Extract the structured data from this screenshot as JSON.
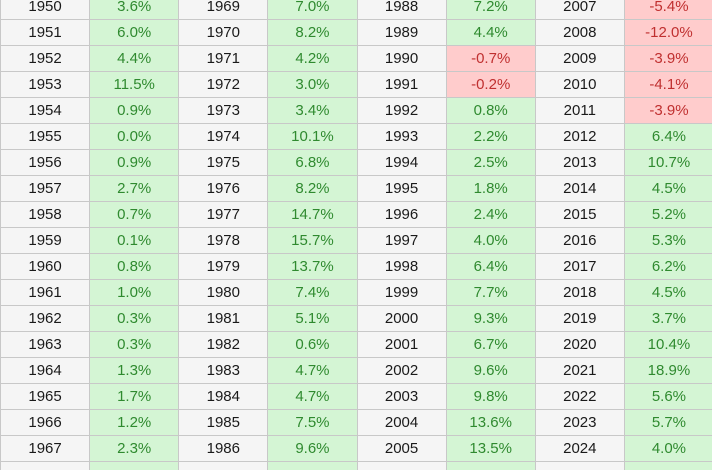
{
  "table": {
    "rows": [
      [
        {
          "year": "1950",
          "value": "3.6%",
          "sign": "pos"
        },
        {
          "year": "1969",
          "value": "7.0%",
          "sign": "pos"
        },
        {
          "year": "1988",
          "value": "7.2%",
          "sign": "pos"
        },
        {
          "year": "2007",
          "value": "-5.4%",
          "sign": "neg"
        }
      ],
      [
        {
          "year": "1951",
          "value": "6.0%",
          "sign": "pos"
        },
        {
          "year": "1970",
          "value": "8.2%",
          "sign": "pos"
        },
        {
          "year": "1989",
          "value": "4.4%",
          "sign": "pos"
        },
        {
          "year": "2008",
          "value": "-12.0%",
          "sign": "neg"
        }
      ],
      [
        {
          "year": "1952",
          "value": "4.4%",
          "sign": "pos"
        },
        {
          "year": "1971",
          "value": "4.2%",
          "sign": "pos"
        },
        {
          "year": "1990",
          "value": "-0.7%",
          "sign": "neg"
        },
        {
          "year": "2009",
          "value": "-3.9%",
          "sign": "neg"
        }
      ],
      [
        {
          "year": "1953",
          "value": "11.5%",
          "sign": "pos"
        },
        {
          "year": "1972",
          "value": "3.0%",
          "sign": "pos"
        },
        {
          "year": "1991",
          "value": "-0.2%",
          "sign": "neg"
        },
        {
          "year": "2010",
          "value": "-4.1%",
          "sign": "neg"
        }
      ],
      [
        {
          "year": "1954",
          "value": "0.9%",
          "sign": "pos"
        },
        {
          "year": "1973",
          "value": "3.4%",
          "sign": "pos"
        },
        {
          "year": "1992",
          "value": "0.8%",
          "sign": "pos"
        },
        {
          "year": "2011",
          "value": "-3.9%",
          "sign": "neg"
        }
      ],
      [
        {
          "year": "1955",
          "value": "0.0%",
          "sign": "pos"
        },
        {
          "year": "1974",
          "value": "10.1%",
          "sign": "pos"
        },
        {
          "year": "1993",
          "value": "2.2%",
          "sign": "pos"
        },
        {
          "year": "2012",
          "value": "6.4%",
          "sign": "pos"
        }
      ],
      [
        {
          "year": "1956",
          "value": "0.9%",
          "sign": "pos"
        },
        {
          "year": "1975",
          "value": "6.8%",
          "sign": "pos"
        },
        {
          "year": "1994",
          "value": "2.5%",
          "sign": "pos"
        },
        {
          "year": "2013",
          "value": "10.7%",
          "sign": "pos"
        }
      ],
      [
        {
          "year": "1957",
          "value": "2.7%",
          "sign": "pos"
        },
        {
          "year": "1976",
          "value": "8.2%",
          "sign": "pos"
        },
        {
          "year": "1995",
          "value": "1.8%",
          "sign": "pos"
        },
        {
          "year": "2014",
          "value": "4.5%",
          "sign": "pos"
        }
      ],
      [
        {
          "year": "1958",
          "value": "0.7%",
          "sign": "pos"
        },
        {
          "year": "1977",
          "value": "14.7%",
          "sign": "pos"
        },
        {
          "year": "1996",
          "value": "2.4%",
          "sign": "pos"
        },
        {
          "year": "2015",
          "value": "5.2%",
          "sign": "pos"
        }
      ],
      [
        {
          "year": "1959",
          "value": "0.1%",
          "sign": "pos"
        },
        {
          "year": "1978",
          "value": "15.7%",
          "sign": "pos"
        },
        {
          "year": "1997",
          "value": "4.0%",
          "sign": "pos"
        },
        {
          "year": "2016",
          "value": "5.3%",
          "sign": "pos"
        }
      ],
      [
        {
          "year": "1960",
          "value": "0.8%",
          "sign": "pos"
        },
        {
          "year": "1979",
          "value": "13.7%",
          "sign": "pos"
        },
        {
          "year": "1998",
          "value": "6.4%",
          "sign": "pos"
        },
        {
          "year": "2017",
          "value": "6.2%",
          "sign": "pos"
        }
      ],
      [
        {
          "year": "1961",
          "value": "1.0%",
          "sign": "pos"
        },
        {
          "year": "1980",
          "value": "7.4%",
          "sign": "pos"
        },
        {
          "year": "1999",
          "value": "7.7%",
          "sign": "pos"
        },
        {
          "year": "2018",
          "value": "4.5%",
          "sign": "pos"
        }
      ],
      [
        {
          "year": "1962",
          "value": "0.3%",
          "sign": "pos"
        },
        {
          "year": "1981",
          "value": "5.1%",
          "sign": "pos"
        },
        {
          "year": "2000",
          "value": "9.3%",
          "sign": "pos"
        },
        {
          "year": "2019",
          "value": "3.7%",
          "sign": "pos"
        }
      ],
      [
        {
          "year": "1963",
          "value": "0.3%",
          "sign": "pos"
        },
        {
          "year": "1982",
          "value": "0.6%",
          "sign": "pos"
        },
        {
          "year": "2001",
          "value": "6.7%",
          "sign": "pos"
        },
        {
          "year": "2020",
          "value": "10.4%",
          "sign": "pos"
        }
      ],
      [
        {
          "year": "1964",
          "value": "1.3%",
          "sign": "pos"
        },
        {
          "year": "1983",
          "value": "4.7%",
          "sign": "pos"
        },
        {
          "year": "2002",
          "value": "9.6%",
          "sign": "pos"
        },
        {
          "year": "2021",
          "value": "18.9%",
          "sign": "pos"
        }
      ],
      [
        {
          "year": "1965",
          "value": "1.7%",
          "sign": "pos"
        },
        {
          "year": "1984",
          "value": "4.7%",
          "sign": "pos"
        },
        {
          "year": "2003",
          "value": "9.8%",
          "sign": "pos"
        },
        {
          "year": "2022",
          "value": "5.6%",
          "sign": "pos"
        }
      ],
      [
        {
          "year": "1966",
          "value": "1.2%",
          "sign": "pos"
        },
        {
          "year": "1985",
          "value": "7.5%",
          "sign": "pos"
        },
        {
          "year": "2004",
          "value": "13.6%",
          "sign": "pos"
        },
        {
          "year": "2023",
          "value": "5.7%",
          "sign": "pos"
        }
      ],
      [
        {
          "year": "1967",
          "value": "2.3%",
          "sign": "pos"
        },
        {
          "year": "1986",
          "value": "9.6%",
          "sign": "pos"
        },
        {
          "year": "2005",
          "value": "13.5%",
          "sign": "pos"
        },
        {
          "year": "2024",
          "value": "4.0%",
          "sign": "pos"
        }
      ],
      [
        {
          "year": "",
          "value": "",
          "sign": "pos"
        },
        {
          "year": "",
          "value": "",
          "sign": "pos"
        },
        {
          "year": "",
          "value": "",
          "sign": "pos"
        },
        {
          "year": "",
          "value": "",
          "sign": "pos"
        }
      ]
    ]
  },
  "colors": {
    "positive_bg": "#d4f5d4",
    "positive_text": "#2f8a2f",
    "negative_bg": "#ffcccc",
    "negative_text": "#c03030",
    "year_bg": "#f5f5f5",
    "border": "#c8c8c8"
  }
}
